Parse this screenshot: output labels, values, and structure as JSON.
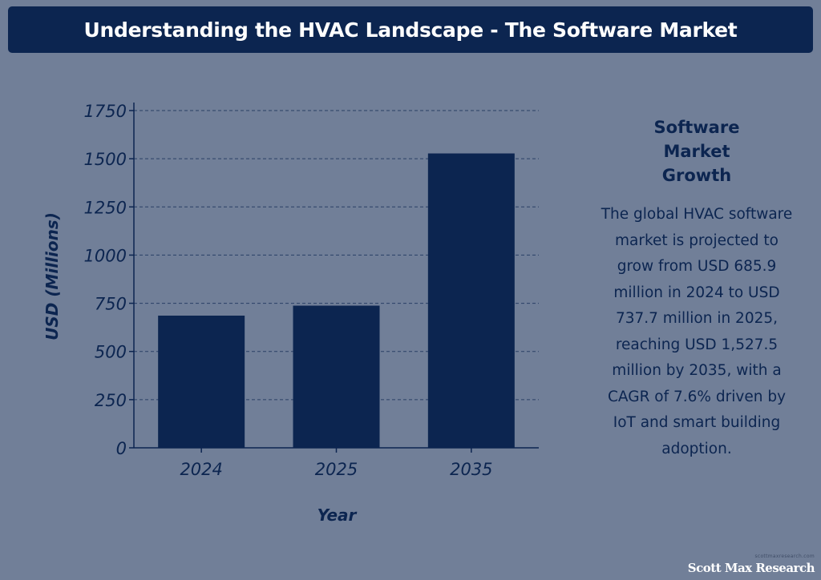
{
  "header": {
    "title": "Understanding the HVAC Landscape - The Software Market"
  },
  "chart_data": {
    "type": "bar",
    "categories": [
      "2024",
      "2025",
      "2035"
    ],
    "values": [
      685.9,
      737.7,
      1527.5
    ],
    "xlabel": "Year",
    "ylabel": "USD (Millions)",
    "ylim": [
      0,
      1750
    ],
    "yticks": [
      0,
      250,
      500,
      750,
      1000,
      1250,
      1500,
      1750
    ],
    "grid": true,
    "bar_color": "#0c2550"
  },
  "sidebar": {
    "heading": "Software Market Growth",
    "body": "The global HVAC software market is projected to grow from USD 685.9 million in 2024 to USD 737.7 million in 2025, reaching USD 1,527.5 million by 2035, with a CAGR of 7.6% driven by IoT and smart building adoption."
  },
  "footer": {
    "small_text": "scottmaxresearch.com",
    "brand": "Scott Max Research"
  },
  "colors": {
    "background": "#717f98",
    "primary": "#0c2550",
    "white": "#ffffff"
  }
}
